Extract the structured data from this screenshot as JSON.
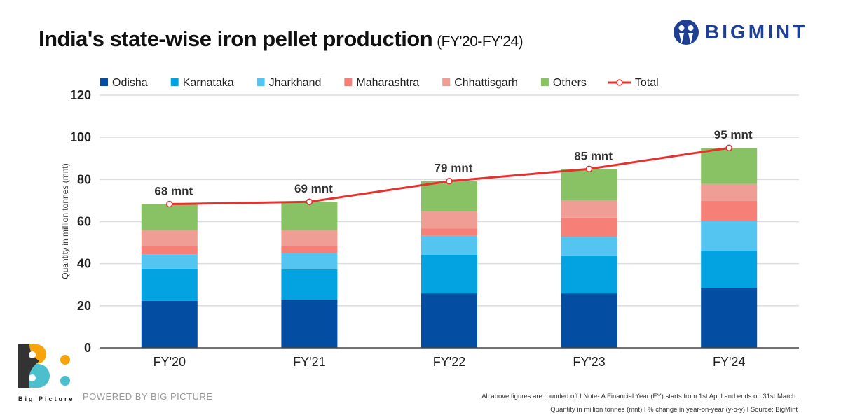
{
  "header": {
    "title": "India's state-wise iron pellet production",
    "subtitle": "(FY'20-FY'24)",
    "brand": "BIGMINT"
  },
  "footer": {
    "powered": "POWERED BY BIG PICTURE",
    "logo_text": "Big Picture",
    "note1": "All above figures are rounded off  I  Note- A Financial Year (FY) starts from 1st April and ends on 31st March.",
    "note2": "Quantity in million tonnes (mnt)  I  % change in year-on-year (y-o-y)  I  Source: BigMint"
  },
  "chart_data": {
    "type": "bar",
    "stacked": true,
    "title": "India's state-wise iron pellet production (FY'20-FY'24)",
    "ylabel": "Quantity in million tonnes (mnt)",
    "xlabel": "",
    "ylim": [
      0,
      120
    ],
    "yticks": [
      0,
      20,
      40,
      60,
      80,
      100,
      120
    ],
    "grid": true,
    "legend": "top",
    "categories": [
      "FY'20",
      "FY'21",
      "FY'22",
      "FY'23",
      "FY'24"
    ],
    "series": [
      {
        "name": "Odisha",
        "color": "#034ea2",
        "values": [
          22.3,
          22.9,
          25.9,
          25.9,
          28.5
        ]
      },
      {
        "name": "Karnataka",
        "color": "#02a3e0",
        "values": [
          15.3,
          14.4,
          18.4,
          17.7,
          17.7
        ]
      },
      {
        "name": "Jharkhand",
        "color": "#54c4f1",
        "values": [
          6.9,
          7.8,
          9.0,
          9.2,
          14.2
        ]
      },
      {
        "name": "Maharashtra",
        "color": "#f67f77",
        "values": [
          3.7,
          3.1,
          3.5,
          9.1,
          9.4
        ]
      },
      {
        "name": "Chhattisgarh",
        "color": "#f09d95",
        "values": [
          7.8,
          7.8,
          8.0,
          8.1,
          8.1
        ]
      },
      {
        "name": "Others",
        "color": "#88c264",
        "values": [
          12.3,
          13.4,
          14.4,
          15.0,
          17.1
        ]
      }
    ],
    "line": {
      "name": "Total",
      "color": "#e8302f",
      "values": [
        68.3,
        69.4,
        79.2,
        85.0,
        95.0
      ],
      "labels": [
        "68 mnt",
        "69 mnt",
        "79 mnt",
        "85 mnt",
        "95 mnt"
      ]
    }
  }
}
